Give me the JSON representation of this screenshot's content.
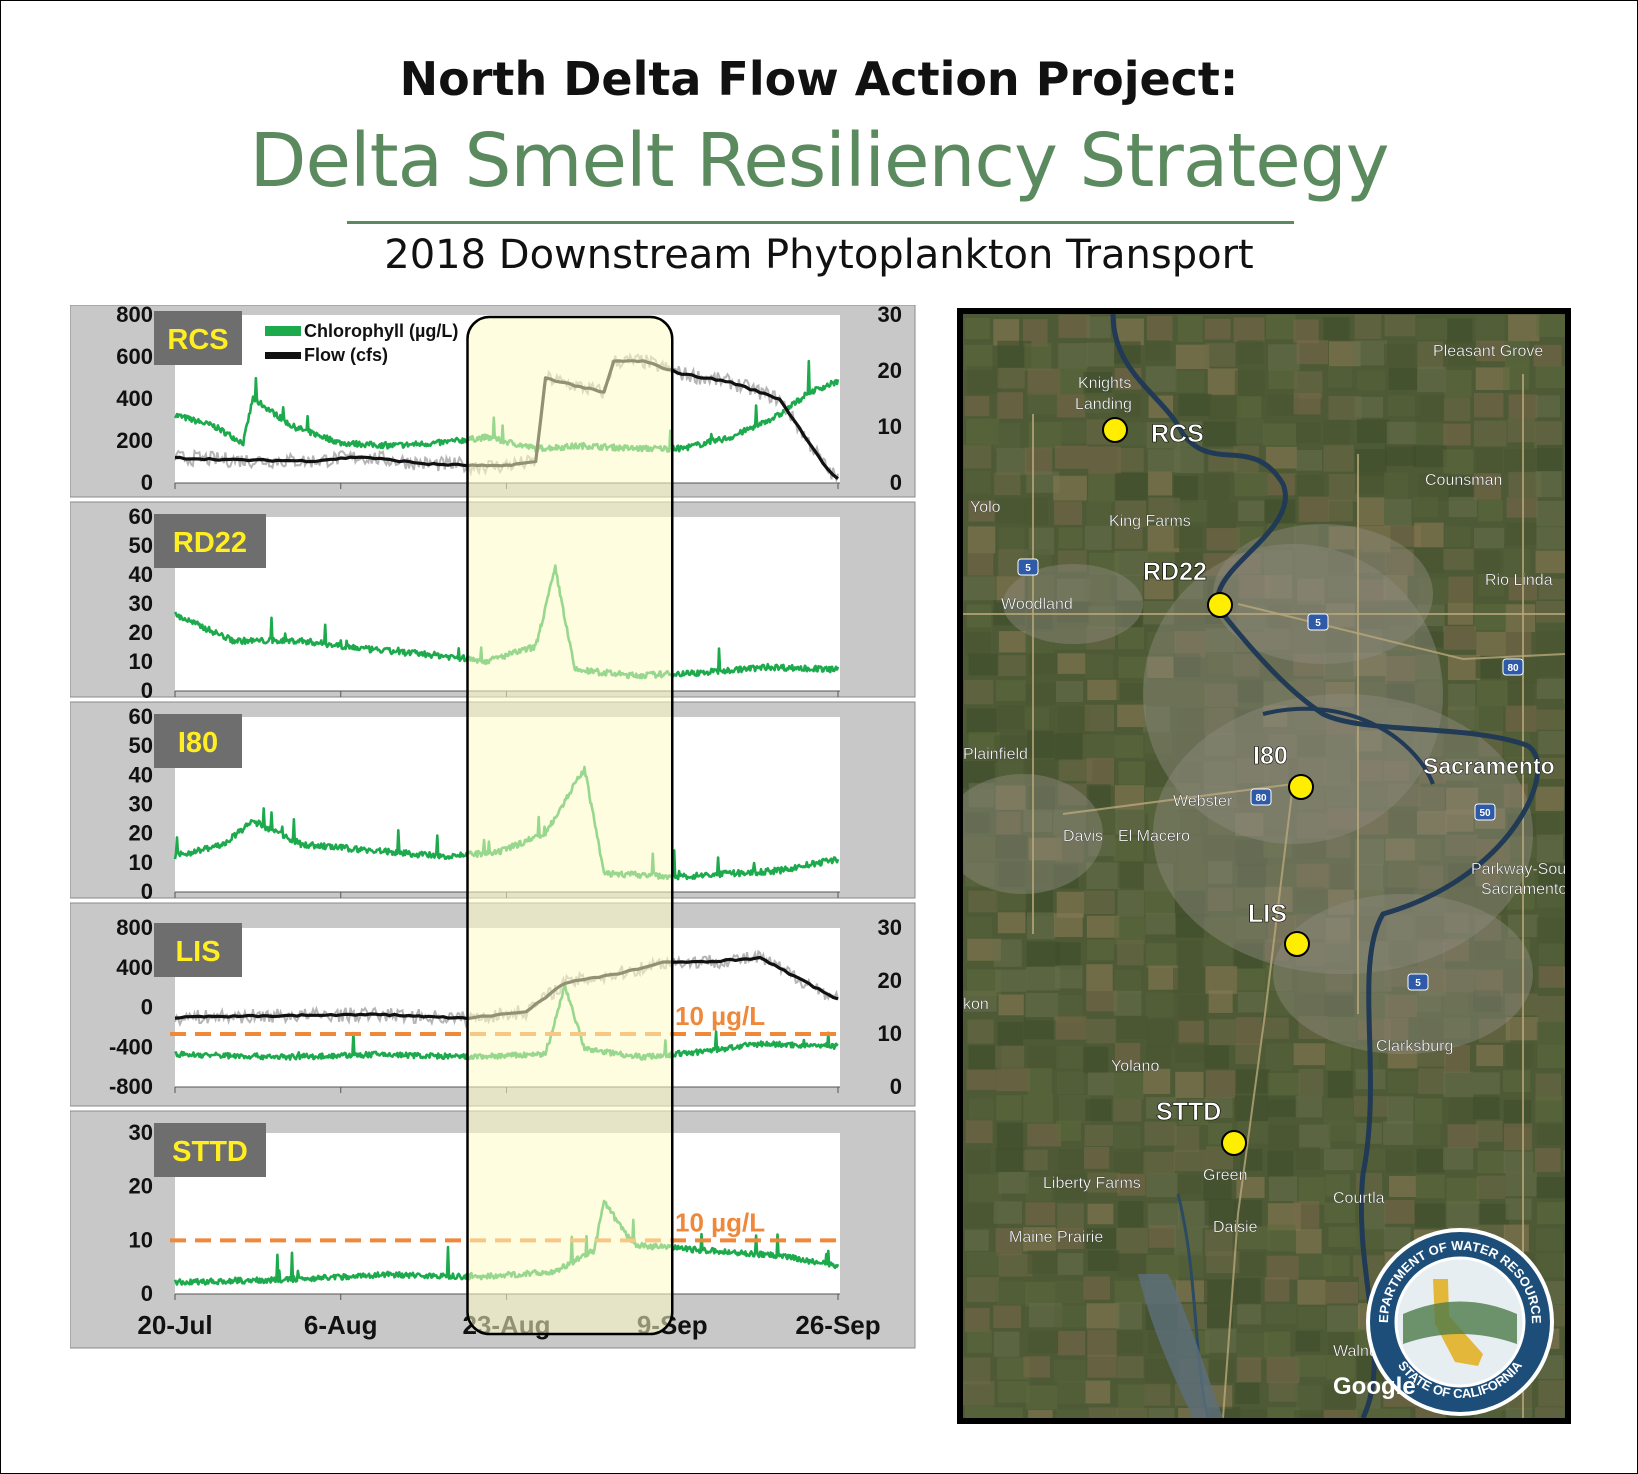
{
  "header": {
    "title_line1": "North Delta Flow Action Project:",
    "title_line2": "Delta Smelt Resiliency Strategy",
    "subtitle": "2018 Downstream Phytoplankton Transport"
  },
  "colors": {
    "chlorophyll": "#1daa4d",
    "flow": "#111111",
    "flow_raw": "#b5b5b5",
    "highlight": "#fdfbc4",
    "threshold": "#f0883a",
    "station_badge_bg": "#6e6e6e",
    "station_badge_text": "#ffee22",
    "title_green": "#5b8a5f"
  },
  "legend": {
    "chlorophyll": "Chlorophyll (µg/L)",
    "flow": "Flow (cfs)"
  },
  "x_axis": {
    "tick_labels": [
      "20-Jul",
      "6-Aug",
      "23-Aug",
      "9-Sep",
      "26-Sep"
    ]
  },
  "highlight_window": {
    "start": "2018-08-19",
    "end": "2018-09-09"
  },
  "chart_data": [
    {
      "type": "line",
      "station": "RCS",
      "x_range": [
        "2018-07-20",
        "2018-09-26"
      ],
      "y_left": {
        "ticks": [
          "800",
          "600",
          "400",
          "200",
          "0"
        ],
        "range": [
          0,
          800
        ]
      },
      "y_right": {
        "ticks": [
          "30",
          "20",
          "10",
          "0"
        ],
        "range": [
          0,
          30
        ]
      },
      "series": [
        {
          "name": "Chlorophyll (µg/L)",
          "axis": "right",
          "x": [
            "2018-07-20",
            "2018-07-24",
            "2018-07-27",
            "2018-07-28",
            "2018-08-01",
            "2018-08-06",
            "2018-08-11",
            "2018-08-16",
            "2018-08-21",
            "2018-08-26",
            "2018-08-31",
            "2018-09-05",
            "2018-09-10",
            "2018-09-15",
            "2018-09-20",
            "2018-09-23",
            "2018-09-26"
          ],
          "y": [
            12,
            10,
            7,
            15,
            10,
            7,
            6.5,
            7,
            8,
            6,
            6.5,
            6,
            6,
            8,
            12,
            16,
            18
          ]
        },
        {
          "name": "Flow (cfs)",
          "axis": "left",
          "x": [
            "2018-07-20",
            "2018-07-26",
            "2018-08-03",
            "2018-08-08",
            "2018-08-15",
            "2018-08-22",
            "2018-08-26",
            "2018-08-27",
            "2018-09-02",
            "2018-09-03",
            "2018-09-06",
            "2018-09-10",
            "2018-09-15",
            "2018-09-20",
            "2018-09-25",
            "2018-09-26"
          ],
          "y": [
            120,
            110,
            105,
            125,
            90,
            80,
            100,
            500,
            430,
            580,
            580,
            520,
            480,
            400,
            60,
            20
          ]
        }
      ]
    },
    {
      "type": "line",
      "station": "RD22",
      "x_range": [
        "2018-07-20",
        "2018-09-26"
      ],
      "y_left": {
        "ticks": [
          "60",
          "50",
          "40",
          "30",
          "20",
          "10",
          "0"
        ],
        "range": [
          0,
          60
        ]
      },
      "series": [
        {
          "name": "Chlorophyll (µg/L)",
          "axis": "left",
          "x": [
            "2018-07-20",
            "2018-07-26",
            "2018-08-02",
            "2018-08-09",
            "2018-08-16",
            "2018-08-21",
            "2018-08-26",
            "2018-08-28",
            "2018-08-30",
            "2018-09-05",
            "2018-09-12",
            "2018-09-19",
            "2018-09-26"
          ],
          "y": [
            26,
            17,
            17,
            14,
            12,
            10,
            15,
            42,
            7,
            5,
            6,
            8,
            7
          ]
        }
      ]
    },
    {
      "type": "line",
      "station": "I80",
      "x_range": [
        "2018-07-20",
        "2018-09-26"
      ],
      "y_left": {
        "ticks": [
          "60",
          "50",
          "40",
          "30",
          "20",
          "10",
          "0"
        ],
        "range": [
          0,
          60
        ]
      },
      "series": [
        {
          "name": "Chlorophyll (µg/L)",
          "axis": "left",
          "x": [
            "2018-07-20",
            "2018-07-25",
            "2018-07-28",
            "2018-08-02",
            "2018-08-09",
            "2018-08-16",
            "2018-08-22",
            "2018-08-27",
            "2018-08-31",
            "2018-09-02",
            "2018-09-10",
            "2018-09-20",
            "2018-09-26"
          ],
          "y": [
            12,
            16,
            24,
            16,
            14,
            12,
            13,
            20,
            42,
            6,
            5,
            7,
            11
          ]
        }
      ]
    },
    {
      "type": "line",
      "station": "LIS",
      "x_range": [
        "2018-07-20",
        "2018-09-26"
      ],
      "y_left": {
        "ticks": [
          "800",
          "400",
          "0",
          "-400",
          "-800"
        ],
        "range": [
          -800,
          800
        ]
      },
      "y_right": {
        "ticks": [
          "30",
          "20",
          "10",
          "0"
        ],
        "range": [
          0,
          30
        ]
      },
      "threshold": {
        "label": "10 µg/L",
        "value": 10,
        "axis": "right"
      },
      "series": [
        {
          "name": "Chlorophyll (µg/L)",
          "axis": "right",
          "x": [
            "2018-07-20",
            "2018-08-01",
            "2018-08-10",
            "2018-08-19",
            "2018-08-27",
            "2018-08-29",
            "2018-08-31",
            "2018-09-06",
            "2018-09-12",
            "2018-09-18",
            "2018-09-26"
          ],
          "y": [
            6,
            5.5,
            6,
            5.5,
            6,
            19,
            7,
            5.5,
            6.5,
            8,
            7.5
          ]
        },
        {
          "name": "Flow (cfs)",
          "axis": "left",
          "x": [
            "2018-07-20",
            "2018-08-01",
            "2018-08-10",
            "2018-08-19",
            "2018-08-25",
            "2018-08-29",
            "2018-09-03",
            "2018-09-08",
            "2018-09-14",
            "2018-09-18",
            "2018-09-26"
          ],
          "y": [
            -100,
            -80,
            -70,
            -110,
            -40,
            250,
            330,
            450,
            470,
            500,
            80
          ]
        }
      ]
    },
    {
      "type": "line",
      "station": "STTD",
      "x_range": [
        "2018-07-20",
        "2018-09-26"
      ],
      "y_left": {
        "ticks": [
          "30",
          "20",
          "10",
          "0"
        ],
        "range": [
          0,
          30
        ]
      },
      "threshold": {
        "label": "10 µg/L",
        "value": 10,
        "axis": "left"
      },
      "series": [
        {
          "name": "Chlorophyll (µg/L)",
          "axis": "left",
          "x": [
            "2018-07-20",
            "2018-07-31",
            "2018-08-11",
            "2018-08-20",
            "2018-08-28",
            "2018-09-01",
            "2018-09-02",
            "2018-09-05",
            "2018-09-12",
            "2018-09-20",
            "2018-09-26"
          ],
          "y": [
            2,
            2.5,
            3.5,
            3,
            4,
            8,
            17,
            9,
            8,
            7,
            5
          ]
        }
      ]
    }
  ],
  "map": {
    "stations": [
      {
        "id": "RCS",
        "label": "RCS"
      },
      {
        "id": "RD22",
        "label": "RD22"
      },
      {
        "id": "I80",
        "label": "I80"
      },
      {
        "id": "LIS",
        "label": "LIS"
      },
      {
        "id": "STTD",
        "label": "STTD"
      }
    ],
    "places": [
      "Knights",
      "Landing",
      "Pleasant Grove",
      "Counsman",
      "Yolo",
      "King Farms",
      "Woodland",
      "Rio Linda",
      "Plainfield",
      "Sacramento",
      "Webster",
      "Davis",
      "El Macero",
      "Parkway-Sout",
      "Sacramento",
      "Clarksburg",
      "Yolano",
      "Liberty Farms",
      "Green",
      "Courtla",
      "Daisie",
      "Maine Prairie",
      "Walnut Grove",
      "kon"
    ],
    "shields": [
      "5",
      "5",
      "80",
      "80",
      "50",
      "5"
    ],
    "attribution": "Google",
    "seal_top_text": "DEPARTMENT OF WATER RESOURCES",
    "seal_bottom_text": "STATE OF CALIFORNIA"
  }
}
